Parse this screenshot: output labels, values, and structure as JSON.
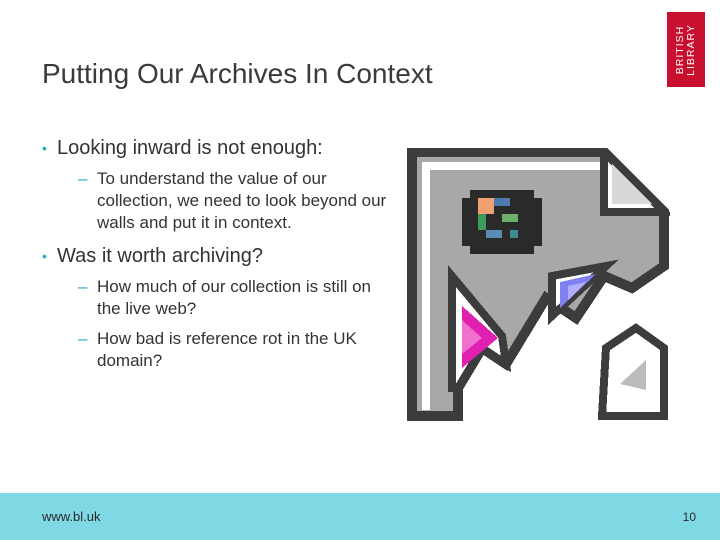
{
  "slide": {
    "title": "Putting Our Archives In Context",
    "bullets": [
      {
        "text": "Looking inward is not enough:",
        "subs": [
          "To understand the value of our collection, we need to look beyond our walls and put it in context."
        ]
      },
      {
        "text": "Was it worth archiving?",
        "subs": [
          "How much of our collection is still on the live web?",
          "How bad is reference rot in the UK domain?"
        ]
      }
    ],
    "bullet_marker": "•",
    "sub_marker": "–"
  },
  "logo": {
    "text": "BRITISH LIBRARY",
    "color": "#c8102e"
  },
  "image": {
    "icon": "broken-image-icon"
  },
  "footer": {
    "url": "www.bl.uk",
    "page_number": "10",
    "color": "#7fd9e4"
  },
  "colors": {
    "accent": "#29a8c6",
    "title": "#3a3a3a"
  }
}
